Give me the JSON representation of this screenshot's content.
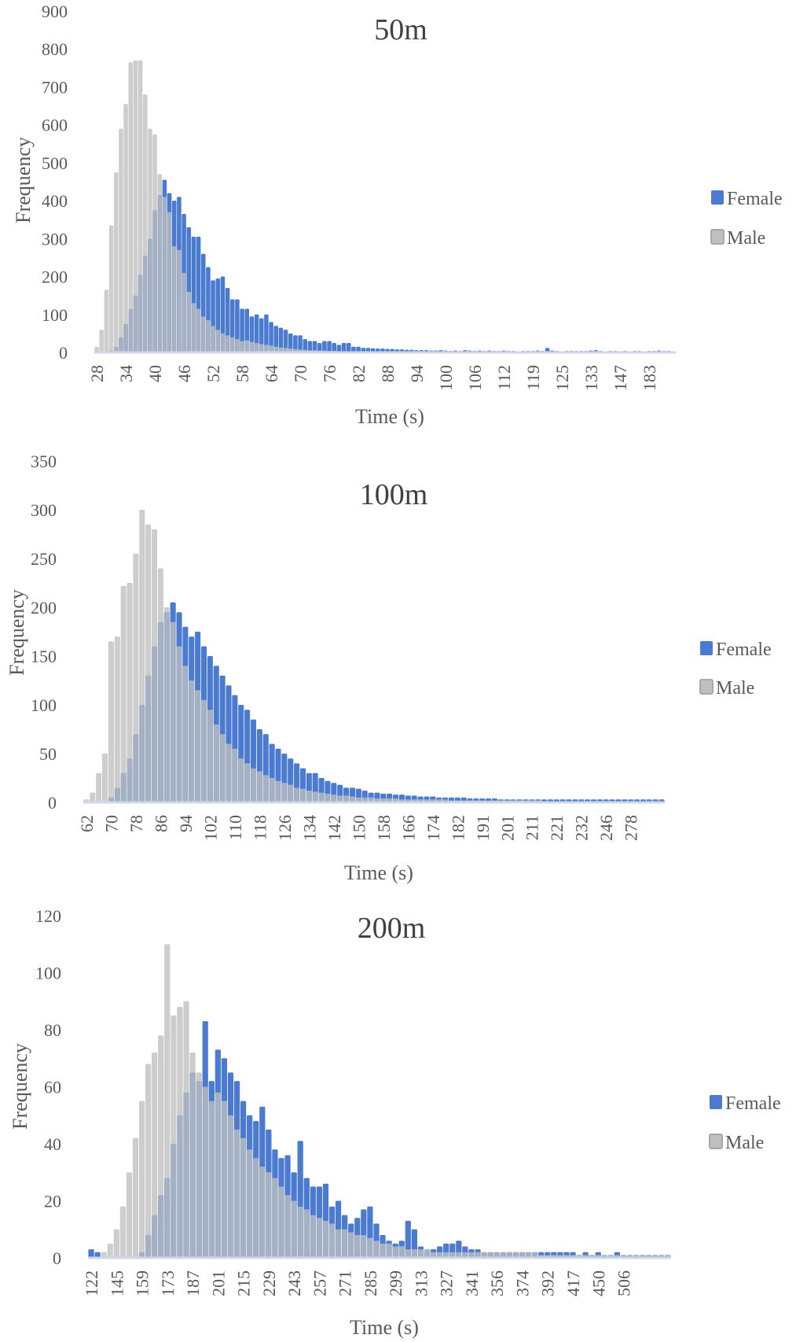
{
  "colors": {
    "female": "#4A7BD0",
    "male": "#BFBFBF",
    "text": "#595959"
  },
  "chart_data": [
    {
      "type": "bar",
      "title": "50m",
      "xlabel": "Time (s)",
      "ylabel": "Frequency",
      "ylim": [
        0,
        900
      ],
      "ytick_step": 100,
      "legend_position": "right",
      "x_tick_labels": [
        "28",
        "34",
        "40",
        "46",
        "52",
        "58",
        "64",
        "70",
        "76",
        "82",
        "88",
        "94",
        "100",
        "106",
        "112",
        "119",
        "125",
        "133",
        "147",
        "183"
      ],
      "series": [
        {
          "name": "Female",
          "values": [
            0,
            0,
            0,
            5,
            15,
            40,
            75,
            115,
            150,
            205,
            255,
            300,
            375,
            415,
            455,
            420,
            400,
            410,
            365,
            330,
            305,
            305,
            260,
            225,
            190,
            195,
            200,
            170,
            140,
            140,
            115,
            115,
            95,
            100,
            90,
            100,
            80,
            70,
            65,
            60,
            50,
            45,
            45,
            35,
            30,
            30,
            25,
            30,
            30,
            25,
            20,
            25,
            25,
            15,
            15,
            12,
            12,
            11,
            10,
            10,
            9,
            9,
            8,
            8,
            7,
            7,
            6,
            6,
            6,
            5,
            5,
            6,
            5,
            4,
            5,
            4,
            6,
            5,
            4,
            5,
            4,
            5,
            4,
            4,
            5,
            4,
            4,
            3,
            4,
            4,
            4,
            5,
            4,
            12,
            5,
            4,
            3,
            4,
            4,
            4,
            4,
            4,
            5,
            6,
            4,
            3,
            4,
            4,
            3,
            4,
            3,
            4,
            4,
            3,
            4,
            4,
            5,
            4,
            4,
            3
          ]
        },
        {
          "name": "Male",
          "values": [
            15,
            60,
            165,
            335,
            475,
            590,
            655,
            765,
            770,
            770,
            680,
            590,
            575,
            470,
            410,
            370,
            280,
            270,
            210,
            160,
            130,
            115,
            95,
            85,
            70,
            60,
            50,
            45,
            40,
            35,
            30,
            32,
            28,
            25,
            22,
            20,
            18,
            15,
            13,
            12,
            10,
            9,
            8,
            7,
            6,
            6,
            5,
            5,
            4,
            4,
            3,
            3,
            3,
            3,
            3,
            3,
            3,
            3,
            3,
            3,
            3,
            3,
            3,
            3,
            3,
            3,
            3,
            3,
            3,
            3,
            2,
            2,
            2,
            2,
            2,
            2,
            2,
            2,
            2,
            2,
            2,
            2,
            2,
            2,
            2,
            2,
            2,
            2,
            2,
            2,
            2,
            2,
            2,
            2,
            2,
            2,
            2,
            2,
            2,
            2,
            1,
            1,
            1,
            1,
            1,
            1,
            1,
            1,
            1,
            1,
            1,
            1,
            1,
            1,
            1,
            1,
            1,
            1,
            1,
            1
          ]
        }
      ]
    },
    {
      "type": "bar",
      "title": "100m",
      "xlabel": "Time (s)",
      "ylabel": "Frequency",
      "ylim": [
        0,
        350
      ],
      "ytick_step": 50,
      "legend_position": "right",
      "x_tick_labels": [
        "62",
        "70",
        "78",
        "86",
        "94",
        "102",
        "110",
        "118",
        "126",
        "134",
        "142",
        "150",
        "158",
        "166",
        "174",
        "182",
        "191",
        "201",
        "211",
        "221",
        "232",
        "246",
        "278"
      ],
      "series": [
        {
          "name": "Female",
          "values": [
            0,
            0,
            0,
            0,
            5,
            15,
            30,
            45,
            70,
            100,
            130,
            160,
            185,
            195,
            205,
            195,
            180,
            170,
            175,
            160,
            150,
            140,
            130,
            120,
            110,
            100,
            95,
            85,
            75,
            70,
            60,
            55,
            50,
            45,
            40,
            35,
            30,
            30,
            25,
            22,
            20,
            18,
            15,
            15,
            14,
            12,
            10,
            10,
            9,
            9,
            8,
            8,
            7,
            7,
            6,
            6,
            6,
            5,
            5,
            5,
            5,
            5,
            4,
            4,
            4,
            4,
            4,
            3,
            3,
            3,
            3,
            3,
            3,
            3,
            3,
            3,
            3,
            3,
            3,
            3,
            3,
            3,
            3,
            3,
            3,
            3,
            3,
            3,
            3,
            3,
            3,
            3,
            3,
            3
          ]
        },
        {
          "name": "Male",
          "values": [
            3,
            10,
            30,
            50,
            165,
            170,
            222,
            225,
            255,
            300,
            285,
            280,
            240,
            200,
            185,
            160,
            140,
            125,
            115,
            105,
            95,
            80,
            70,
            60,
            55,
            45,
            40,
            35,
            32,
            28,
            25,
            22,
            20,
            18,
            15,
            14,
            12,
            11,
            10,
            9,
            8,
            7,
            7,
            6,
            5,
            5,
            5,
            4,
            4,
            4,
            4,
            3,
            3,
            3,
            3,
            3,
            3,
            3,
            3,
            2,
            2,
            2,
            2,
            2,
            2,
            2,
            2,
            2,
            2,
            2,
            2,
            2,
            2,
            2,
            1,
            1,
            1,
            1,
            1,
            1,
            1,
            1,
            1,
            1,
            1,
            1,
            1,
            1,
            1,
            1,
            1,
            1,
            1,
            1
          ]
        }
      ]
    },
    {
      "type": "bar",
      "title": "200m",
      "xlabel": "Time (s)",
      "ylabel": "Frequency",
      "ylim": [
        0,
        120
      ],
      "ytick_step": 20,
      "legend_position": "right",
      "x_tick_labels": [
        "122",
        "145",
        "159",
        "173",
        "187",
        "201",
        "215",
        "229",
        "243",
        "257",
        "271",
        "285",
        "299",
        "313",
        "327",
        "341",
        "356",
        "374",
        "392",
        "417",
        "450",
        "506"
      ],
      "series": [
        {
          "name": "Female",
          "values": [
            3,
            2,
            0,
            0,
            0,
            0,
            0,
            0,
            2,
            8,
            15,
            22,
            28,
            40,
            50,
            58,
            65,
            62,
            83,
            62,
            73,
            70,
            65,
            62,
            55,
            50,
            48,
            53,
            45,
            38,
            35,
            36,
            30,
            41,
            28,
            25,
            25,
            26,
            18,
            20,
            15,
            12,
            14,
            17,
            18,
            12,
            8,
            6,
            5,
            6,
            13,
            10,
            4,
            3,
            3,
            4,
            5,
            5,
            6,
            4,
            3,
            3,
            2,
            2,
            2,
            2,
            2,
            2,
            2,
            2,
            2,
            2,
            2,
            2,
            2,
            2,
            2,
            1,
            2,
            1,
            2,
            1,
            1,
            2,
            1,
            1,
            1,
            1,
            1,
            1,
            1,
            1
          ]
        },
        {
          "name": "Male",
          "values": [
            0,
            0,
            2,
            5,
            10,
            18,
            30,
            42,
            55,
            68,
            72,
            78,
            110,
            85,
            88,
            90,
            72,
            65,
            60,
            55,
            58,
            55,
            50,
            45,
            42,
            38,
            35,
            32,
            30,
            28,
            25,
            22,
            20,
            18,
            17,
            15,
            14,
            13,
            12,
            10,
            10,
            9,
            8,
            8,
            7,
            6,
            5,
            5,
            4,
            4,
            3,
            3,
            3,
            3,
            2,
            2,
            2,
            2,
            2,
            2,
            2,
            2,
            2,
            2,
            2,
            2,
            2,
            2,
            2,
            2,
            2,
            1,
            1,
            1,
            1,
            1,
            1,
            1,
            1,
            1,
            1,
            1,
            1,
            1,
            1,
            1,
            1,
            1,
            1,
            1,
            1,
            1
          ]
        }
      ]
    }
  ]
}
